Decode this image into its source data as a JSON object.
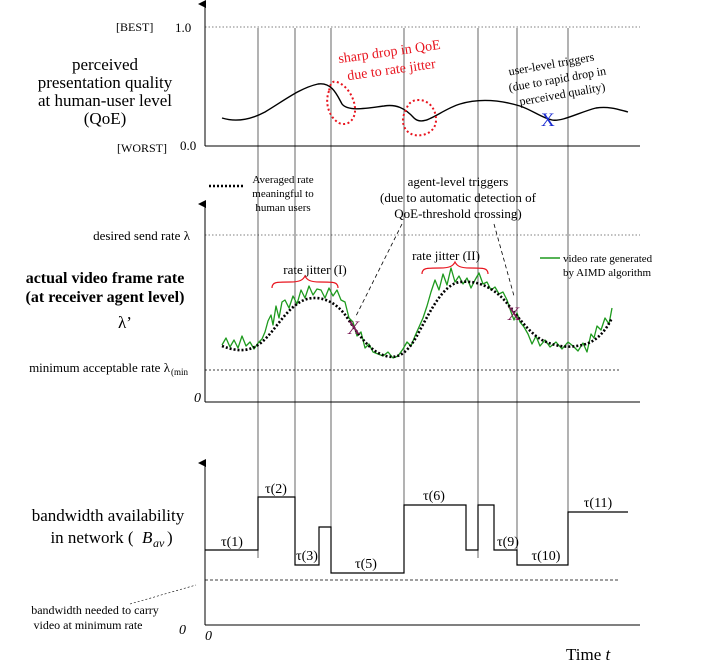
{
  "panel_top": {
    "best_label": "[BEST]",
    "one_label": "1.0",
    "worst_label": "[WORST]",
    "zero_label": "0.0",
    "ylabel_lines": [
      "perceived",
      "presentation quality",
      "at human-user level",
      "(QoE)"
    ],
    "annotation_drop_lines": [
      "sharp drop in QoE",
      "due to rate jitter"
    ],
    "annotation_user_lines": [
      "user-level triggers",
      "(due to rapid drop in",
      "perceived quality)"
    ],
    "user_trigger_mark": "X",
    "colors": {
      "drop_annotation": "#e8141e",
      "user_trigger": "#1a2bd0"
    }
  },
  "panel_middle": {
    "legend_avg_lines": [
      "Averaged rate",
      "meaningful to",
      "human users"
    ],
    "agent_trigger_lines": [
      "agent-level triggers",
      "(due to automatic detection of",
      "QoE-threshold crossing)"
    ],
    "desired_rate_label": "desired send rate  λ",
    "min_rate_label": "minimum acceptable rate  λ",
    "min_rate_subscript": "(min",
    "zero_label": "0",
    "ylabel_lines": [
      "actual video frame rate",
      "(at receiver agent level)"
    ],
    "lambda_prime": "λ’",
    "jitter_1_label": "rate jitter (I)",
    "jitter_2_label": "rate jitter  (II)",
    "green_legend_lines": [
      "video rate generated",
      "by AIMD algorithm"
    ],
    "agent_trigger_mark": "X",
    "colors": {
      "aimd_rate": "#1e9a1e",
      "jitter_brace": "#e8141e",
      "agent_trigger": "#7a1a55"
    }
  },
  "panel_bottom": {
    "ylabel_lines": [
      "bandwidth availability",
      "in network  ("
    ],
    "ylabel_var": "B",
    "ylabel_sub": "av",
    "ylabel_close": ")",
    "needed_lines": [
      "bandwidth needed to carry",
      "video at minimum rate"
    ],
    "zero_label_y": "0",
    "zero_label_x": "0",
    "time_label": "Time ",
    "time_var": "t",
    "tau_labels": [
      "τ(1)",
      "τ(2)",
      "τ(3)",
      "τ(5)",
      "τ(6)",
      "τ(9)",
      "τ(10)",
      "τ(11)"
    ]
  }
}
